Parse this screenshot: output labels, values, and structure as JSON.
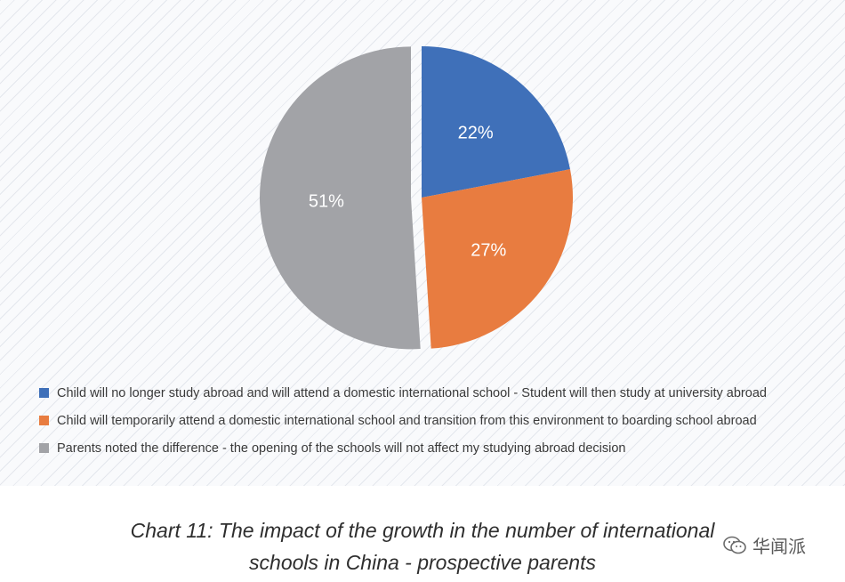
{
  "chart_data": {
    "type": "pie",
    "title": "",
    "slices": [
      {
        "label": "Child will no longer study abroad and will attend a domestic international school - Student will then study at university abroad",
        "value": 22,
        "display": "22%",
        "color": "#3f70b9"
      },
      {
        "label": "Child will temporarily attend a domestic international school and transition from this environment to boarding school abroad",
        "value": 27,
        "display": "27%",
        "color": "#e87c40"
      },
      {
        "label": "Parents noted the difference - the opening of the schools will not affect my studying abroad decision",
        "value": 51,
        "display": "51%",
        "color": "#a2a3a7"
      }
    ],
    "legend_position": "bottom-left"
  },
  "caption": {
    "line1": "Chart 11: The impact of the growth in the number of international",
    "line2": "schools in China - prospective parents"
  },
  "watermark": {
    "text": "华闻派",
    "icon": "wechat-icon"
  }
}
